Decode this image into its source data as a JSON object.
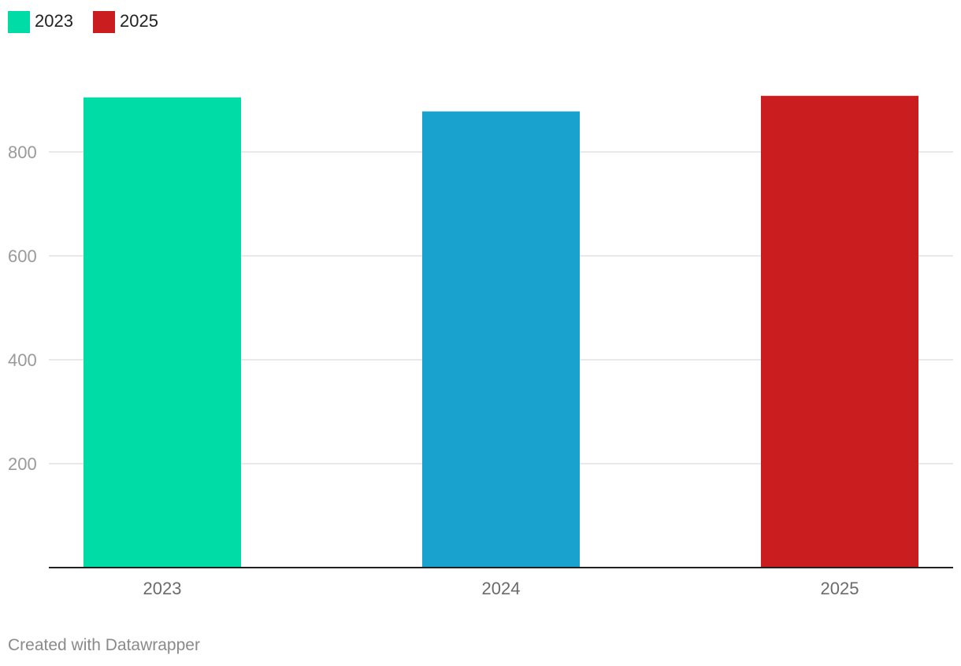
{
  "legend": [
    {
      "label": "2023",
      "color": "#00dca6"
    },
    {
      "label": "2025",
      "color": "#c91d1f"
    }
  ],
  "chart_data": {
    "type": "bar",
    "categories": [
      "2023",
      "2024",
      "2025"
    ],
    "values": [
      905,
      878,
      908
    ],
    "colors": [
      "#00dca6",
      "#19a2ce",
      "#c91d1f"
    ],
    "yticks": [
      200,
      400,
      600,
      800
    ],
    "ylim": [
      0,
      960
    ],
    "grid": true,
    "legend_position": "top-left"
  },
  "footer": {
    "credit": "Created with Datawrapper"
  }
}
